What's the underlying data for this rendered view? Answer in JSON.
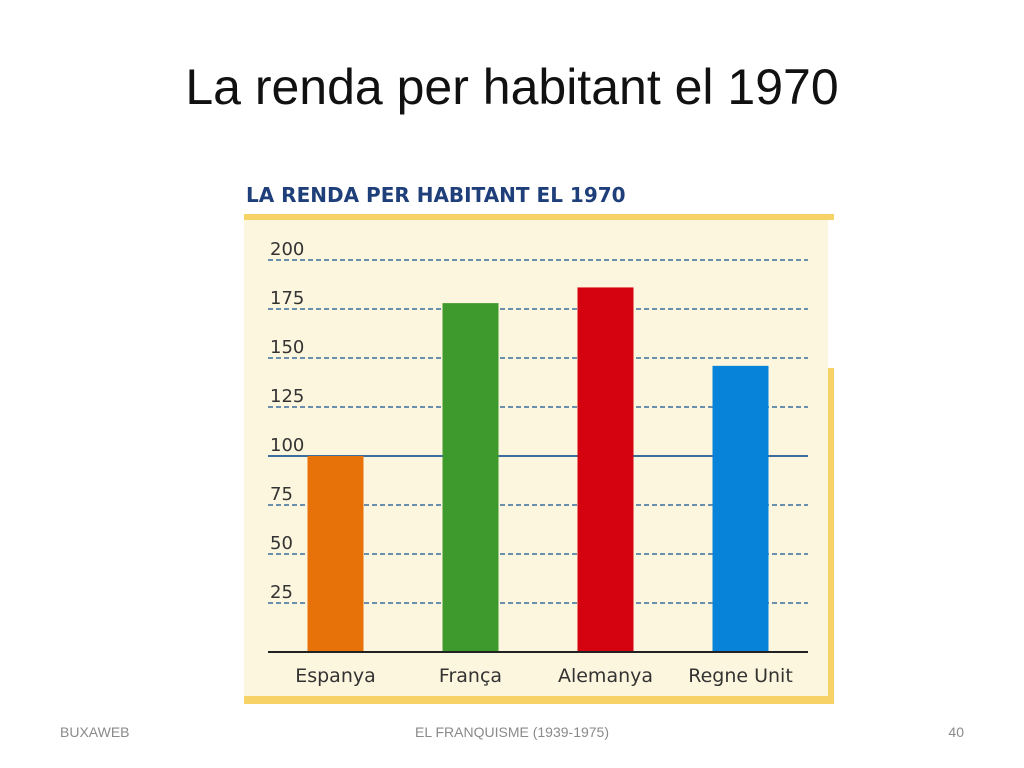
{
  "slide": {
    "title": "La renda per habitant el 1970",
    "footer_left": "BUXAWEB",
    "footer_center": "EL FRANQUISME (1939-1975)",
    "footer_right": "40"
  },
  "chart_data": {
    "type": "bar",
    "title": "LA RENDA PER HABITANT EL 1970",
    "categories": [
      "Espanya",
      "França",
      "Alemanya",
      "Regne Unit"
    ],
    "values": [
      100,
      178,
      186,
      146
    ],
    "colors": [
      "#E8720A",
      "#3F9A2E",
      "#D5030F",
      "#0784DA"
    ],
    "ylim": [
      0,
      200
    ],
    "yticks": [
      25,
      50,
      75,
      100,
      125,
      150,
      175,
      200
    ],
    "ytick_labels": [
      "25",
      "50",
      "75",
      "100",
      "125",
      "150",
      "175",
      "200"
    ],
    "reference_line": 100,
    "grid": true,
    "title_color": "#1F3F7A",
    "panel_color": "#FDF6DE",
    "frame_color": "#F7D266",
    "grid_color": "#3D6D9E"
  }
}
